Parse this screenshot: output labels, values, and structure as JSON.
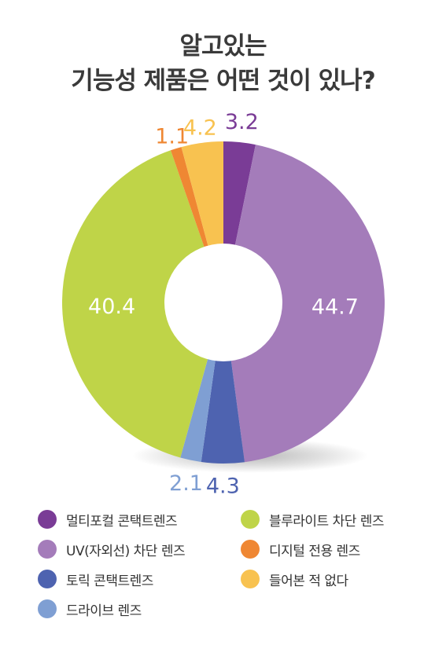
{
  "chart_data": {
    "type": "donut",
    "title": [
      "알고있는",
      "기능성 제품은 어떤 것이 있나?"
    ],
    "series": [
      {
        "name": "멀티포컬 콘택트렌즈",
        "value": 3.2,
        "label": "3.2",
        "color": "#7a3c96",
        "label_color": "#7a3c96"
      },
      {
        "name": "UV(자외선) 차단 렌즈",
        "value": 44.7,
        "label": "44.7",
        "color": "#a47cba",
        "label_color": "#ffffff"
      },
      {
        "name": "토릭 콘택트렌즈",
        "value": 4.3,
        "label": "4.3",
        "color": "#4e63b0",
        "label_color": "#4e63b0"
      },
      {
        "name": "드라이브 렌즈",
        "value": 2.1,
        "label": "2.1",
        "color": "#7f9fd3",
        "label_color": "#7f9fd3"
      },
      {
        "name": "블루라이트 차단 렌즈",
        "value": 40.4,
        "label": "40.4",
        "color": "#bfd448",
        "label_color": "#ffffff"
      },
      {
        "name": "디지털 전용 렌즈",
        "value": 1.1,
        "label": "1.1",
        "color": "#ef8733",
        "label_color": "#ef8733"
      },
      {
        "name": "들어본 적 없다",
        "value": 4.2,
        "label": "4.2",
        "color": "#f8c250",
        "label_color": "#f8c250"
      }
    ],
    "legend_order": [
      0,
      1,
      2,
      3,
      4,
      5,
      6
    ],
    "legend_placement": "bottom"
  }
}
